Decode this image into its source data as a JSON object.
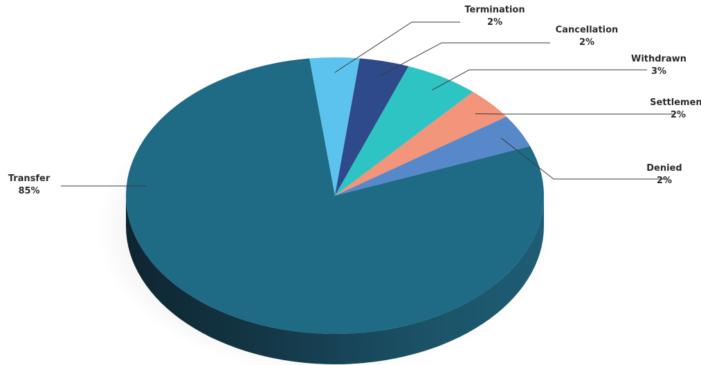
{
  "chart_data": {
    "type": "pie",
    "title": "",
    "style": "3d",
    "legend": "none",
    "slices": [
      {
        "name": "Transfer",
        "value_label": "85%",
        "value": 85,
        "color": "#1f6b86"
      },
      {
        "name": "Termination",
        "value_label": "2%",
        "value": 2,
        "color": "#5bc3ee"
      },
      {
        "name": "Cancellation",
        "value_label": "2%",
        "value": 2,
        "color": "#2f4a8a"
      },
      {
        "name": "Withdrawn",
        "value_label": "3%",
        "value": 3,
        "color": "#2ec4c4"
      },
      {
        "name": "Settlement",
        "value_label": "2%",
        "value": 2,
        "color": "#f2957a"
      },
      {
        "name": "Denied",
        "value_label": "2%",
        "value": 2,
        "color": "#5788c9"
      }
    ]
  }
}
